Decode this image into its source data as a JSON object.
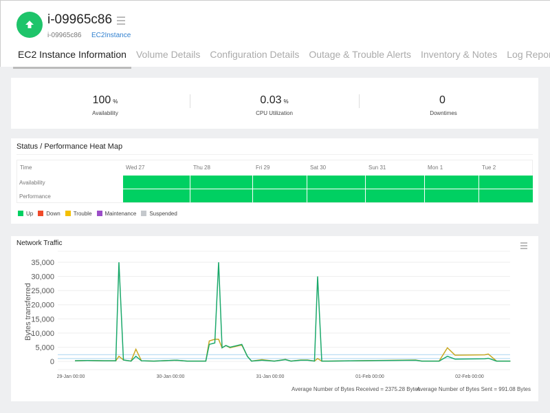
{
  "header": {
    "title": "i-09965c86",
    "instance_id": "i-09965c86",
    "type_link": "EC2Instance",
    "status": "up",
    "status_color": "#1ec46a"
  },
  "tabs": [
    {
      "label": "EC2 Instance Information",
      "active": true
    },
    {
      "label": "Volume Details"
    },
    {
      "label": "Configuration Details"
    },
    {
      "label": "Outage & Trouble Alerts"
    },
    {
      "label": "Inventory & Notes"
    },
    {
      "label": "Log Report"
    }
  ],
  "summary": [
    {
      "value": "100",
      "unit": "%",
      "label": "Availability"
    },
    {
      "value": "0.03",
      "unit": "%",
      "label": "CPU Utilization"
    },
    {
      "value": "0",
      "unit": "",
      "label": "Downtimes"
    }
  ],
  "heatmap": {
    "title": "Status / Performance Heat Map",
    "time_label": "Time",
    "columns": [
      "Wed 27",
      "Thu 28",
      "Fri 29",
      "Sat 30",
      "Sun 31",
      "Mon 1",
      "Tue 2"
    ],
    "rows": [
      {
        "label": "Availability",
        "status": [
          "Up",
          "Up",
          "Up",
          "Up",
          "Up",
          "Up",
          "Up"
        ]
      },
      {
        "label": "Performance",
        "status": [
          "Up",
          "Up",
          "Up",
          "Up",
          "Up",
          "Up",
          "Up"
        ]
      }
    ],
    "legend": [
      {
        "label": "Up",
        "color": "#00d062"
      },
      {
        "label": "Down",
        "color": "#f04a2a"
      },
      {
        "label": "Trouble",
        "color": "#f4c000"
      },
      {
        "label": "Maintenance",
        "color": "#9b4dc8"
      },
      {
        "label": "Suspended",
        "color": "#c4c8cc"
      }
    ]
  },
  "chart_data": {
    "type": "line",
    "title": "Network Traffic",
    "ylabel": "Bytes transferred",
    "ylim": [
      0,
      35000
    ],
    "yticks": [
      "0",
      "5,000",
      "10,000",
      "15,000",
      "20,000",
      "25,000",
      "30,000",
      "35,000"
    ],
    "xticks": [
      "29-Jan 00:00",
      "30-Jan 00:00",
      "31-Jan 00:00",
      "01-Feb 00:00",
      "02-Feb 00:00"
    ],
    "grid": true,
    "series": [
      {
        "color": "#1aa86a",
        "points": [
          [
            "29-Jan 01:00",
            200
          ],
          [
            "29-Jan 04:00",
            300
          ],
          [
            "29-Jan 08:00",
            200
          ],
          [
            "29-Jan 10:50",
            200
          ],
          [
            "29-Jan 11:35",
            35000
          ],
          [
            "29-Jan 12:40",
            500
          ],
          [
            "29-Jan 14:30",
            100
          ],
          [
            "29-Jan 15:40",
            1800
          ],
          [
            "29-Jan 17:00",
            200
          ],
          [
            "29-Jan 20:00",
            100
          ],
          [
            "30-Jan 01:30",
            400
          ],
          [
            "30-Jan 04:00",
            100
          ],
          [
            "30-Jan 08:30",
            100
          ],
          [
            "30-Jan 09:20",
            6000
          ],
          [
            "30-Jan 10:40",
            6500
          ],
          [
            "30-Jan 11:35",
            35000
          ],
          [
            "30-Jan 12:25",
            4800
          ],
          [
            "30-Jan 13:20",
            5600
          ],
          [
            "30-Jan 14:20",
            5000
          ],
          [
            "30-Jan 17:10",
            6000
          ],
          [
            "30-Jan 18:30",
            1800
          ],
          [
            "30-Jan 19:30",
            100
          ],
          [
            "30-Jan 22:00",
            400
          ],
          [
            "31-Jan 01:00",
            100
          ],
          [
            "31-Jan 03:40",
            600
          ],
          [
            "31-Jan 05:00",
            100
          ],
          [
            "31-Jan 07:20",
            400
          ],
          [
            "31-Jan 09:00",
            400
          ],
          [
            "31-Jan 10:40",
            100
          ],
          [
            "31-Jan 11:25",
            30000
          ],
          [
            "31-Jan 12:25",
            100
          ],
          [
            "31-Jan 14:00",
            100
          ],
          [
            "01-Feb 11:00",
            400
          ],
          [
            "01-Feb 12:30",
            100
          ],
          [
            "01-Feb 16:40",
            100
          ],
          [
            "01-Feb 18:40",
            1800
          ],
          [
            "01-Feb 20:30",
            800
          ],
          [
            "02-Feb 03:40",
            900
          ],
          [
            "02-Feb 04:30",
            1100
          ],
          [
            "02-Feb 06:30",
            100
          ],
          [
            "02-Feb 09:50",
            100
          ]
        ]
      },
      {
        "color": "#c9a820",
        "points": [
          [
            "29-Jan 01:00",
            200
          ],
          [
            "29-Jan 04:00",
            300
          ],
          [
            "29-Jan 08:00",
            200
          ],
          [
            "29-Jan 10:50",
            200
          ],
          [
            "29-Jan 11:35",
            1800
          ],
          [
            "29-Jan 12:40",
            500
          ],
          [
            "29-Jan 14:30",
            100
          ],
          [
            "29-Jan 15:40",
            4300
          ],
          [
            "29-Jan 17:00",
            200
          ],
          [
            "29-Jan 20:00",
            100
          ],
          [
            "30-Jan 01:30",
            400
          ],
          [
            "30-Jan 04:00",
            100
          ],
          [
            "30-Jan 08:30",
            100
          ],
          [
            "30-Jan 09:20",
            7200
          ],
          [
            "30-Jan 10:40",
            7800
          ],
          [
            "30-Jan 11:35",
            7800
          ],
          [
            "30-Jan 12:25",
            4800
          ],
          [
            "30-Jan 13:20",
            5600
          ],
          [
            "30-Jan 14:20",
            4800
          ],
          [
            "30-Jan 17:10",
            5800
          ],
          [
            "30-Jan 18:30",
            1800
          ],
          [
            "30-Jan 19:30",
            100
          ],
          [
            "30-Jan 22:00",
            600
          ],
          [
            "31-Jan 01:00",
            100
          ],
          [
            "31-Jan 03:40",
            700
          ],
          [
            "31-Jan 05:00",
            100
          ],
          [
            "31-Jan 07:20",
            500
          ],
          [
            "31-Jan 09:00",
            500
          ],
          [
            "31-Jan 10:40",
            100
          ],
          [
            "31-Jan 11:25",
            1000
          ],
          [
            "31-Jan 12:25",
            100
          ],
          [
            "31-Jan 14:00",
            100
          ],
          [
            "01-Feb 11:00",
            500
          ],
          [
            "01-Feb 12:30",
            100
          ],
          [
            "01-Feb 16:40",
            100
          ],
          [
            "01-Feb 18:40",
            4800
          ],
          [
            "01-Feb 20:30",
            2200
          ],
          [
            "02-Feb 03:40",
            2300
          ],
          [
            "02-Feb 04:30",
            2600
          ],
          [
            "02-Feb 06:30",
            100
          ],
          [
            "02-Feb 09:50",
            100
          ]
        ]
      }
    ],
    "average_lines": [
      {
        "value": 2375.28,
        "color": "#a8d4f0"
      },
      {
        "value": 991.08,
        "color": "#a8d4f0"
      }
    ],
    "footnotes": [
      "Average Number of Bytes Received = 2375.28 Bytes",
      "Average Number of Bytes Sent = 991.08 Bytes"
    ]
  }
}
